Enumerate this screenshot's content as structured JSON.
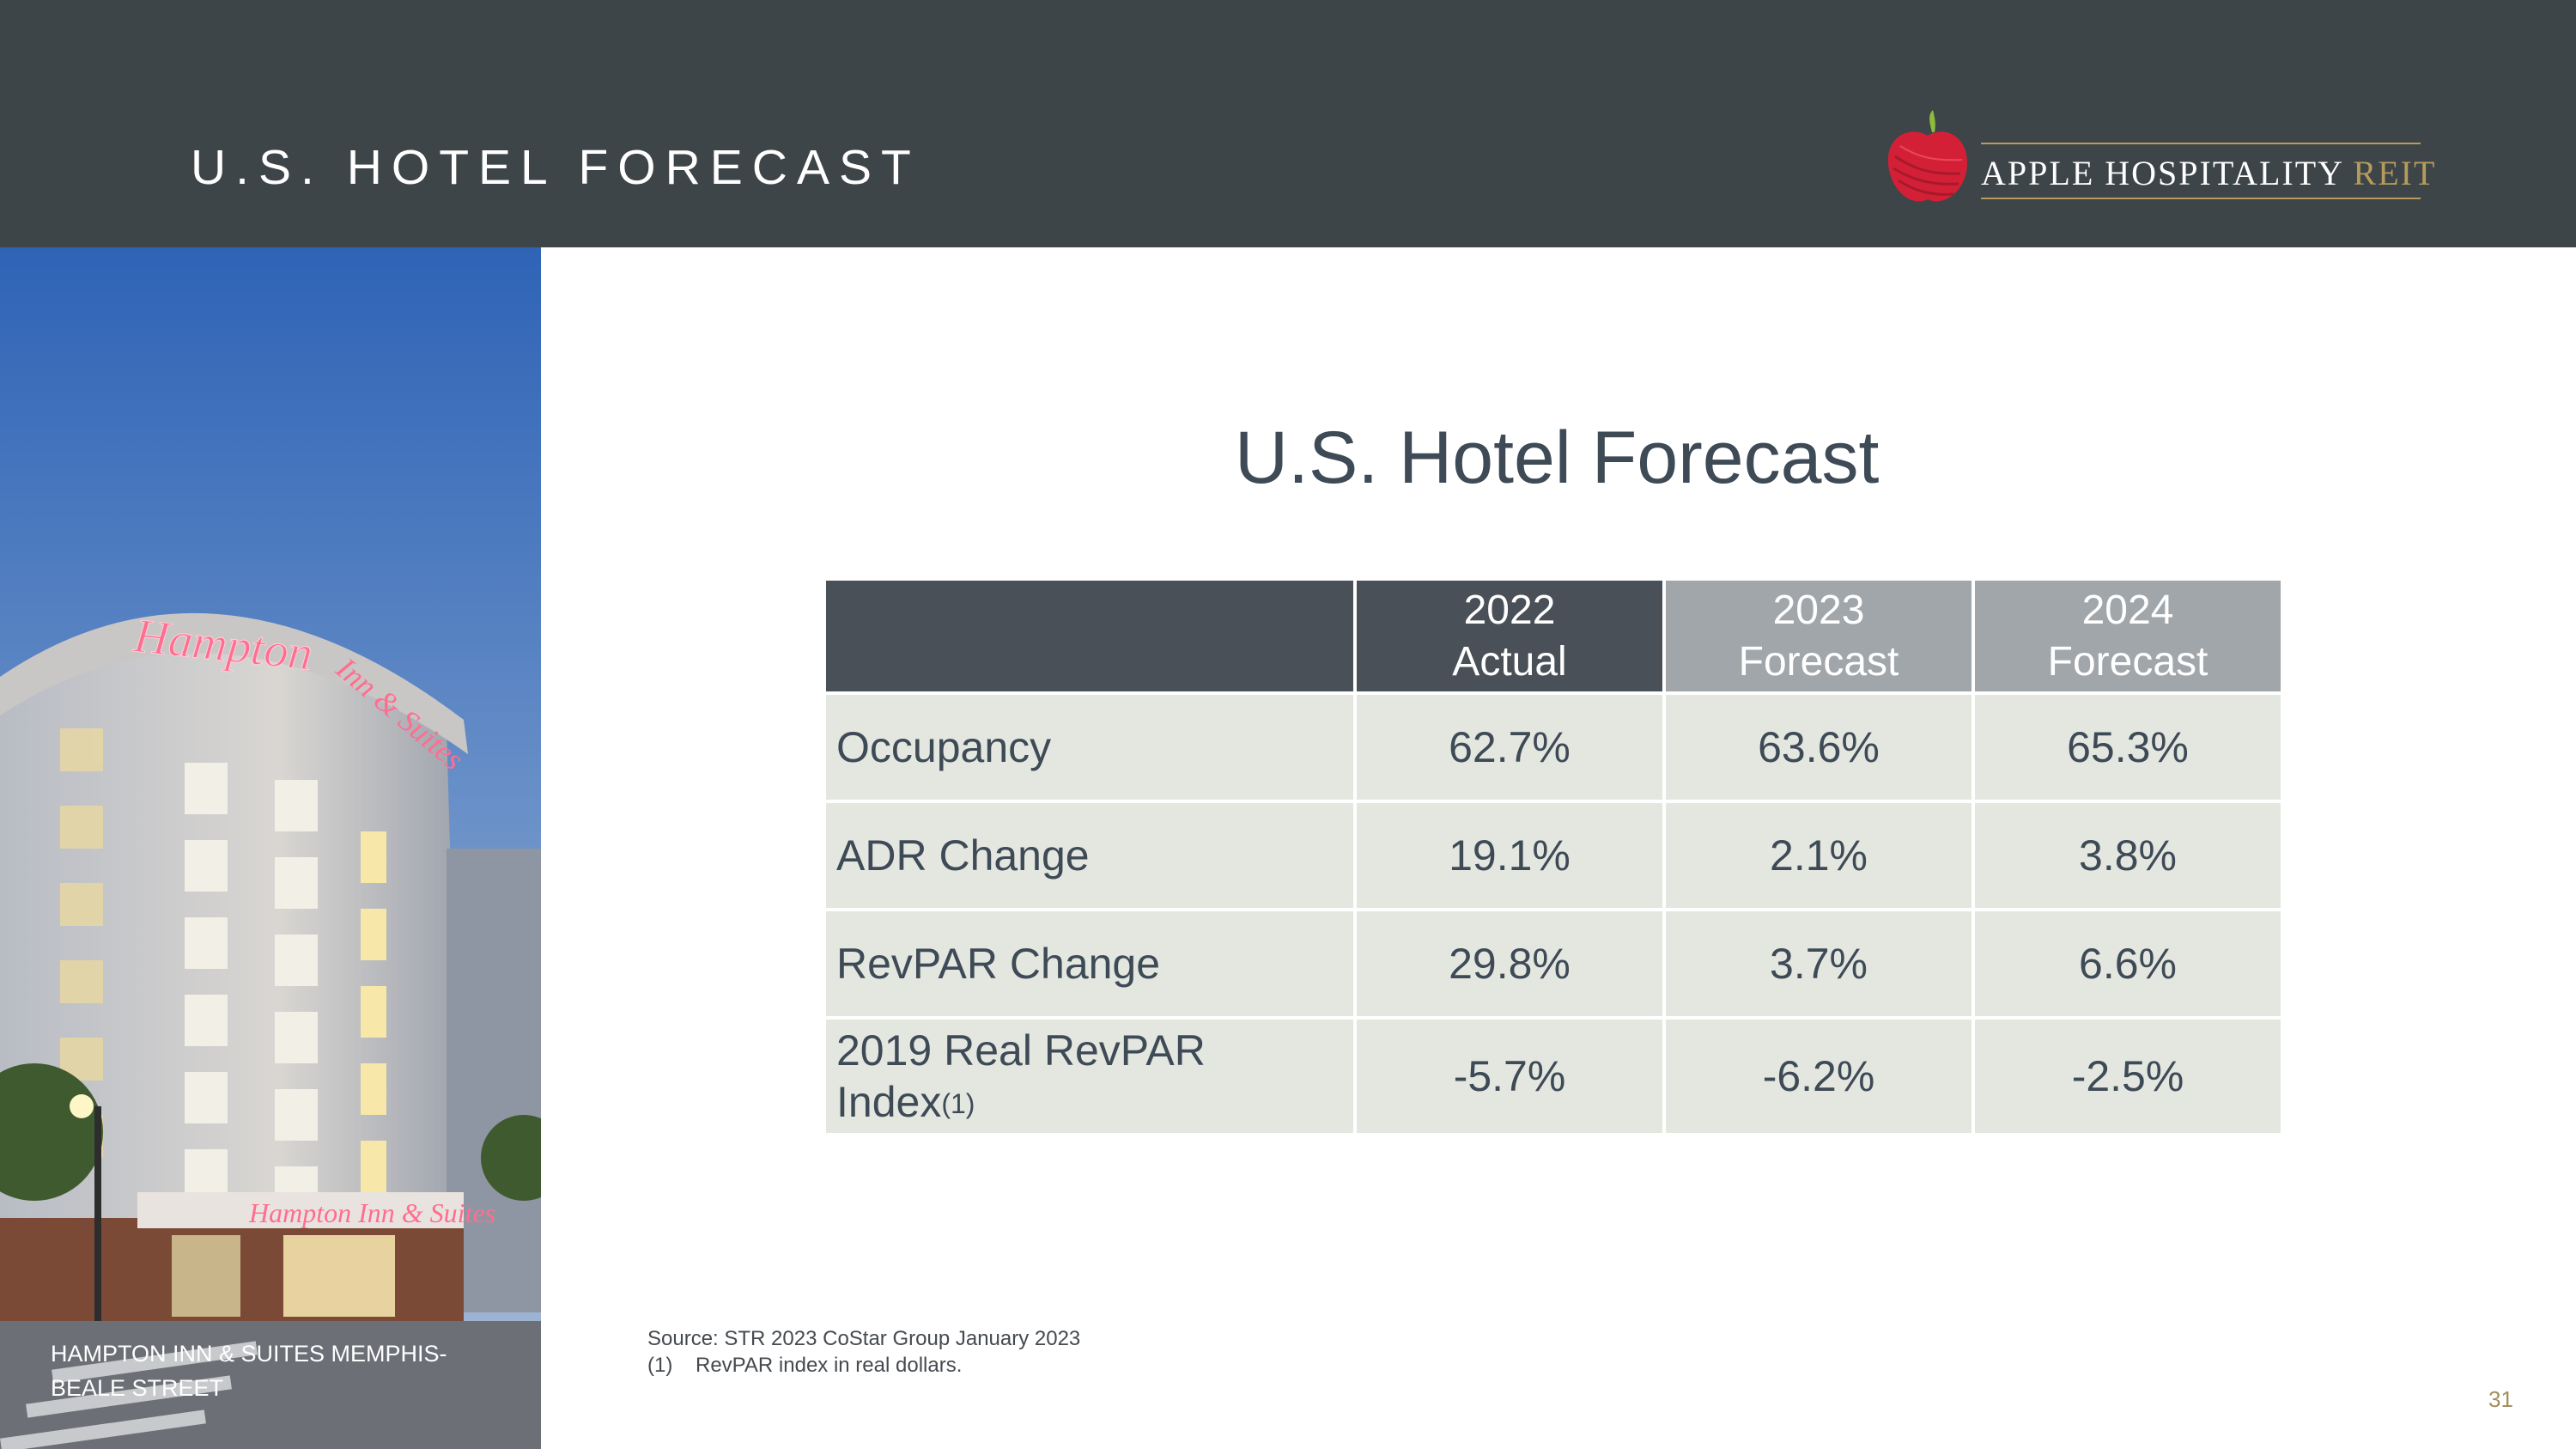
{
  "header": {
    "title": "U.S. HOTEL FORECAST",
    "logo_text_main": "APPLE HOSPITALITY ",
    "logo_text_accent": "REIT"
  },
  "photo": {
    "caption": "HAMPTON INN & SUITES MEMPHIS- BEALE STREET",
    "sign_text": "Hampton",
    "sign_text_2": "Inn & Suites",
    "marquee_text": "Hampton Inn & Suites"
  },
  "main": {
    "title": "U.S. Hotel Forecast",
    "table": {
      "headers": [
        {
          "line1": "",
          "line2": ""
        },
        {
          "line1": "2022",
          "line2": "Actual"
        },
        {
          "line1": "2023",
          "line2": "Forecast"
        },
        {
          "line1": "2024",
          "line2": "Forecast"
        }
      ],
      "rows": [
        {
          "label": "Occupancy",
          "values": [
            "62.7%",
            "63.6%",
            "65.3%"
          ]
        },
        {
          "label": "ADR Change",
          "values": [
            "19.1%",
            "2.1%",
            "3.8%"
          ]
        },
        {
          "label": "RevPAR Change",
          "values": [
            "29.8%",
            "3.7%",
            "6.6%"
          ]
        },
        {
          "label_line1": "2019 Real RevPAR",
          "label_line2": "Index",
          "label_sup": "(1)",
          "values": [
            "-5.7%",
            "-6.2%",
            "-2.5%"
          ]
        }
      ]
    }
  },
  "footer": {
    "source": "Source: STR 2023 CoStar Group January 2023",
    "note_number": "(1)",
    "note_text": "RevPAR index in real dollars.",
    "page_number": "31"
  },
  "colors": {
    "header_bg": "#3e4548",
    "table_header_dark": "#4a5058",
    "table_header_light": "#a1a6ab",
    "table_cell": "#e4e7e0",
    "text": "#3e4a56",
    "accent_gold": "#b59c5c",
    "logo_red": "#d42036"
  }
}
